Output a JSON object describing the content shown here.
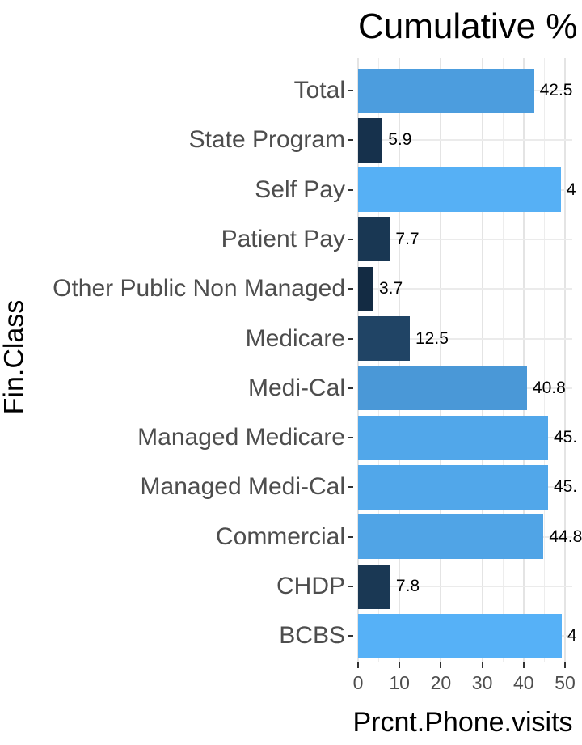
{
  "chart": {
    "title": "Cumulative %",
    "xlabel": "Prcnt.Phone.visits",
    "ylabel": "Fin.Class"
  },
  "chart_data": {
    "type": "bar",
    "orientation": "horizontal",
    "title": "Cumulative %",
    "xlabel": "Prcnt.Phone.visits",
    "ylabel": "Fin.Class",
    "categories": [
      "Total",
      "State Program",
      "Self Pay",
      "Patient Pay",
      "Other Public Non Managed",
      "Medicare",
      "Medi-Cal",
      "Managed Medicare",
      "Managed Medi-Cal",
      "Commercial",
      "CHDP",
      "BCBS"
    ],
    "values": [
      42.5,
      5.9,
      49.0,
      7.7,
      3.7,
      12.5,
      40.8,
      45.9,
      45.9,
      44.8,
      7.8,
      49.2
    ],
    "value_labels_visible": [
      "42.5",
      "5.9",
      "4",
      "7.7",
      "3.7",
      "12.5",
      "40.8",
      "45.",
      "45.",
      "44.8",
      "7.8",
      "4"
    ],
    "bar_colors": [
      "#4C9DDE",
      "#16314C",
      "#56B0F5",
      "#193753",
      "#132B43",
      "#204465",
      "#4A98D7",
      "#51A7EA",
      "#51A7EA",
      "#50A4E6",
      "#1A3854",
      "#56B1F7"
    ],
    "x_ticks": [
      0,
      10,
      20,
      30,
      40,
      50
    ],
    "x_minor_step": 5,
    "xlim": [
      0,
      50
    ],
    "grid": true,
    "legend": false,
    "panel_background": "#ffffff",
    "gridline_color": "#ebebeb",
    "axis_text_color": "#4d4d4d",
    "title_color": "#000000",
    "fill_gradient": {
      "low": "#132B43",
      "high": "#56B1F7"
    }
  }
}
